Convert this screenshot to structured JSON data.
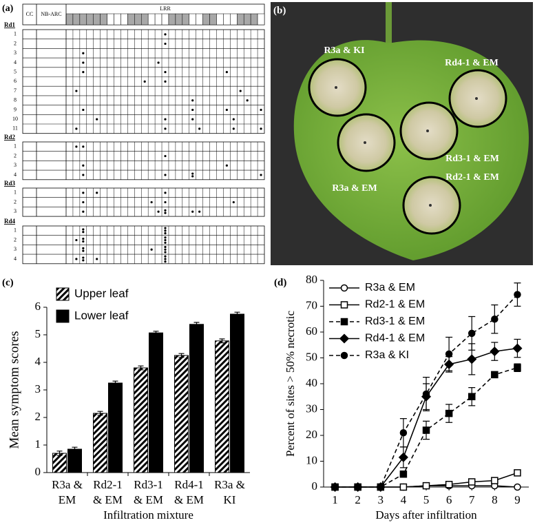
{
  "diagram": {
    "panel_label": "(a)",
    "header": {
      "cc": "CC",
      "nbarc": "NB-ARC",
      "lrr": "LRR"
    },
    "groups": [
      {
        "name": "Rd1",
        "rows": [
          {
            "label": "1",
            "dots": [
              15
            ]
          },
          {
            "label": "2",
            "dots": [
              15
            ]
          },
          {
            "label": "3",
            "dots": [
              3
            ]
          },
          {
            "label": "4",
            "dots": [
              3,
              14
            ]
          },
          {
            "label": "5",
            "dots": [
              3,
              15,
              24
            ]
          },
          {
            "label": "6",
            "dots": [
              12,
              15
            ]
          },
          {
            "label": "7",
            "dots": [
              2,
              26
            ]
          },
          {
            "label": "8",
            "dots": [
              19,
              27
            ]
          },
          {
            "label": "9",
            "dots": [
              3,
              19,
              24,
              29
            ]
          },
          {
            "label": "10",
            "dots": [
              5,
              15,
              19,
              25
            ]
          },
          {
            "label": "11",
            "dots": [
              2,
              15,
              20,
              25,
              29
            ]
          }
        ]
      },
      {
        "name": "Rd2",
        "rows": [
          {
            "label": "1",
            "dots": [
              2,
              3
            ]
          },
          {
            "label": "2",
            "dots": [
              15
            ]
          },
          {
            "label": "3",
            "dots": [
              3,
              24
            ]
          },
          {
            "label": "4",
            "dots": [
              3,
              15,
              19,
              19,
              29
            ]
          }
        ]
      },
      {
        "name": "Rd3",
        "rows": [
          {
            "label": "1",
            "dots": [
              3,
              5,
              15
            ]
          },
          {
            "label": "2",
            "dots": [
              3,
              13,
              15,
              25
            ]
          },
          {
            "label": "3",
            "dots": [
              3,
              14,
              15,
              15,
              19,
              20
            ]
          }
        ]
      },
      {
        "name": "Rd4",
        "rows": [
          {
            "label": "1",
            "dots": [
              3,
              3,
              15,
              15,
              15
            ]
          },
          {
            "label": "2",
            "dots": [
              2,
              3,
              3,
              15,
              15,
              15
            ]
          },
          {
            "label": "3",
            "dots": [
              3,
              3,
              13,
              15,
              15,
              15
            ]
          },
          {
            "label": "4",
            "dots": [
              2,
              3,
              3,
              5,
              15,
              15,
              15
            ]
          }
        ]
      }
    ]
  },
  "photo": {
    "panel_label": "(b)",
    "labels": [
      "R3a & KI",
      "Rd4-1 & EM",
      "Rd3-1 & EM",
      "Rd2-1 & EM",
      "R3a & EM"
    ]
  },
  "chart_data": [
    {
      "type": "bar",
      "panel_label": "(c)",
      "ylabel": "Mean symptom scores",
      "xlabel": "Infiltration mixture",
      "categories": [
        [
          "R3a &",
          "EM"
        ],
        [
          "Rd2-1",
          "& EM"
        ],
        [
          "Rd3-1",
          "& EM"
        ],
        [
          "Rd4-1",
          "& EM"
        ],
        [
          "R3a &",
          "KI"
        ]
      ],
      "series": [
        {
          "name": "Upper leaf",
          "color": "#000000",
          "hatch": true,
          "values": [
            0.7,
            2.15,
            3.8,
            4.25,
            4.78
          ],
          "errors": [
            0.08,
            0.07,
            0.07,
            0.07,
            0.07
          ]
        },
        {
          "name": "Lower leaf",
          "color": "#000000",
          "hatch": false,
          "values": [
            0.85,
            3.25,
            5.07,
            5.38,
            5.75
          ],
          "errors": [
            0.07,
            0.07,
            0.06,
            0.07,
            0.07
          ]
        }
      ],
      "ylim": [
        0,
        6
      ],
      "yticks": [
        0,
        1,
        2,
        3,
        4,
        5,
        6
      ],
      "legend": "upper-left"
    },
    {
      "type": "line",
      "panel_label": "(d)",
      "xlabel": "Days after infiltration",
      "ylabel": "Percent of sites > 50% necrotic",
      "x": [
        1,
        2,
        3,
        4,
        5,
        6,
        7,
        8,
        9
      ],
      "xlim": [
        0.5,
        9.5
      ],
      "xticks": [
        1,
        2,
        3,
        4,
        5,
        6,
        7,
        8,
        9
      ],
      "ylim": [
        0,
        80
      ],
      "yticks": [
        0,
        10,
        20,
        30,
        40,
        50,
        60,
        70,
        80
      ],
      "legend": "upper-left",
      "series": [
        {
          "name": "R3a & EM",
          "color": "#000000",
          "marker": "circle",
          "filled": false,
          "dashed": false,
          "values": [
            0,
            0,
            0,
            0,
            0.5,
            0.5,
            0.5,
            0.5,
            0
          ]
        },
        {
          "name": "Rd2-1 & EM",
          "color": "#000000",
          "marker": "square",
          "filled": false,
          "dashed": false,
          "values": [
            0,
            0,
            0,
            0,
            0.5,
            1,
            2,
            2.5,
            5.5
          ]
        },
        {
          "name": "Rd3-1 & EM",
          "color": "#000000",
          "marker": "square",
          "filled": true,
          "dashed": true,
          "values": [
            0,
            0,
            0,
            5,
            22,
            28.5,
            35,
            43.5,
            46.2
          ],
          "errors": [
            0,
            0,
            0,
            0,
            3.5,
            3.5,
            3.5,
            1,
            1.5
          ]
        },
        {
          "name": "Rd4-1 & EM",
          "color": "#000000",
          "marker": "diamond",
          "filled": true,
          "dashed": false,
          "values": [
            0,
            0,
            0,
            11.5,
            35,
            47.5,
            49.5,
            52.5,
            53.7
          ],
          "errors": [
            0,
            0,
            0,
            4,
            5,
            3,
            6,
            3.5,
            3.5
          ]
        },
        {
          "name": "R3a & KI",
          "color": "#000000",
          "marker": "circle",
          "filled": true,
          "dashed": true,
          "values": [
            0,
            0,
            0,
            21,
            36,
            51.5,
            59.5,
            65,
            74.5
          ],
          "errors": [
            0,
            0,
            0,
            5.5,
            6.5,
            6.5,
            6.5,
            5.5,
            4.5
          ]
        }
      ]
    }
  ]
}
